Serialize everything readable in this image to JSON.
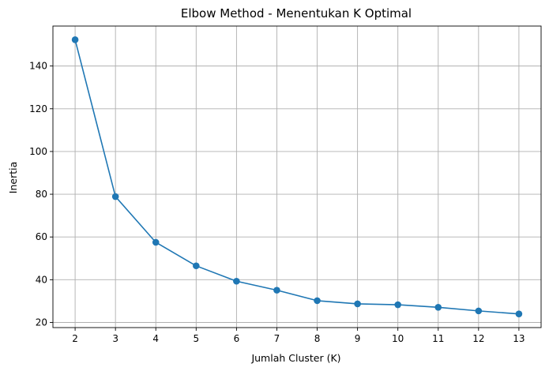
{
  "chart_data": {
    "type": "line",
    "title": "Elbow Method - Menentukan K Optimal",
    "xlabel": "Jumlah Cluster (K)",
    "ylabel": "Inertia",
    "x": [
      2,
      3,
      4,
      5,
      6,
      7,
      8,
      9,
      10,
      11,
      12,
      13
    ],
    "series": [
      {
        "values": [
          152.3,
          78.9,
          57.5,
          46.5,
          39.3,
          35.1,
          30.2,
          28.7,
          28.3,
          27.1,
          25.4,
          24.0
        ],
        "color": "#1f77b4",
        "marker": "circle"
      }
    ],
    "xticks": [
      2,
      3,
      4,
      5,
      6,
      7,
      8,
      9,
      10,
      11,
      12,
      13
    ],
    "yticks": [
      20,
      40,
      60,
      80,
      100,
      120,
      140
    ],
    "xlim": [
      1.45,
      13.55
    ],
    "ylim": [
      17.6,
      158.7
    ],
    "grid": true,
    "grid_color": "#b0b0b0",
    "axis_color": "#000000"
  }
}
